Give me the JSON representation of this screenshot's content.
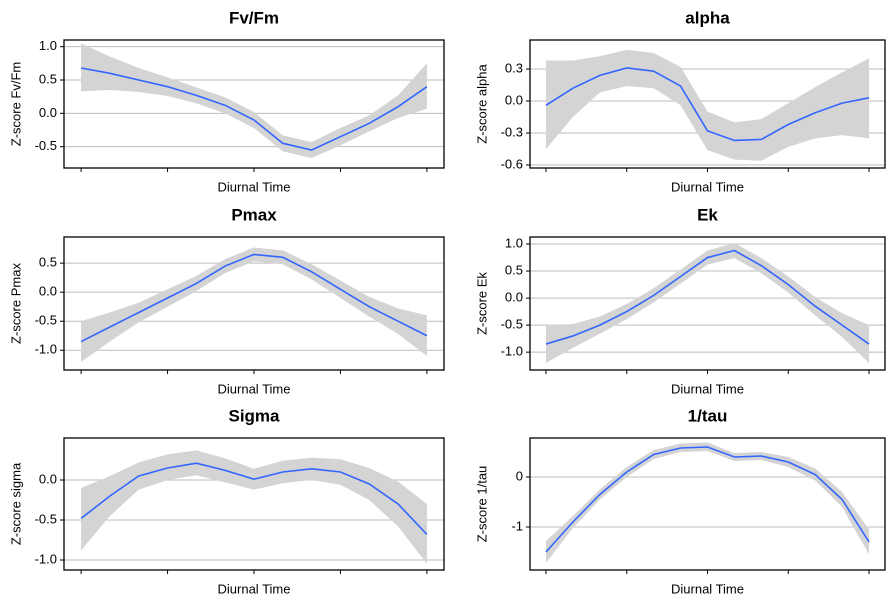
{
  "chart_data": [
    {
      "type": "line",
      "title": "Fv/Fm",
      "xlabel": "Diurnal Time",
      "ylabel": "Z-score Fv/Fm",
      "categories": [
        null,
        null,
        null,
        null,
        null,
        null,
        null,
        null,
        null,
        null,
        null,
        null,
        null
      ],
      "series": [
        {
          "color": "#3366ff",
          "band_color": "#d4d4d4",
          "values": [
            0.68,
            0.6,
            0.5,
            0.4,
            0.27,
            0.12,
            -0.1,
            -0.45,
            -0.55,
            -0.35,
            -0.15,
            0.1,
            0.4
          ],
          "lower": [
            0.33,
            0.35,
            0.32,
            0.26,
            0.15,
            0.0,
            -0.22,
            -0.57,
            -0.67,
            -0.48,
            -0.27,
            -0.07,
            0.07
          ],
          "upper": [
            1.05,
            0.85,
            0.68,
            0.54,
            0.39,
            0.24,
            0.02,
            -0.33,
            -0.43,
            -0.22,
            -0.03,
            0.27,
            0.75
          ]
        }
      ],
      "ylim": [
        -0.82,
        1.1
      ],
      "yticks": [
        {
          "value": -0.5,
          "label": "-0.5"
        },
        {
          "value": 0,
          "label": "0.0"
        },
        0.5,
        {
          "value": 1,
          "label": "1.0"
        }
      ],
      "grid": true
    },
    {
      "type": "line",
      "title": "alpha",
      "xlabel": "Diurnal Time",
      "ylabel": "Z-score alpha",
      "categories": [
        null,
        null,
        null,
        null,
        null,
        null,
        null,
        null,
        null,
        null,
        null,
        null,
        null
      ],
      "series": [
        {
          "color": "#3366ff",
          "band_color": "#d4d4d4",
          "values": [
            -0.04,
            0.12,
            0.24,
            0.31,
            0.28,
            0.14,
            -0.28,
            -0.37,
            -0.36,
            -0.22,
            -0.11,
            -0.02,
            0.03
          ],
          "lower": [
            -0.45,
            -0.15,
            0.08,
            0.14,
            0.12,
            -0.04,
            -0.46,
            -0.55,
            -0.56,
            -0.43,
            -0.35,
            -0.32,
            -0.35
          ],
          "upper": [
            0.38,
            0.38,
            0.42,
            0.48,
            0.45,
            0.32,
            -0.1,
            -0.2,
            -0.17,
            -0.02,
            0.13,
            0.27,
            0.4
          ]
        }
      ],
      "ylim": [
        -0.628,
        0.572
      ],
      "yticks": [
        -0.6,
        -0.3,
        {
          "value": 0,
          "label": "0.0"
        },
        0.3
      ],
      "grid": true
    },
    {
      "type": "line",
      "title": "Pmax",
      "xlabel": "Diurnal Time",
      "ylabel": "Z-score Pmax",
      "categories": [
        null,
        null,
        null,
        null,
        null,
        null,
        null,
        null,
        null,
        null,
        null,
        null,
        null
      ],
      "series": [
        {
          "color": "#3366ff",
          "band_color": "#d4d4d4",
          "values": [
            -0.85,
            -0.6,
            -0.35,
            -0.1,
            0.15,
            0.45,
            0.65,
            0.6,
            0.35,
            0.05,
            -0.25,
            -0.5,
            -0.75
          ],
          "lower": [
            -1.2,
            -0.85,
            -0.52,
            -0.25,
            0.02,
            0.33,
            0.53,
            0.48,
            0.22,
            -0.1,
            -0.42,
            -0.72,
            -1.1
          ],
          "upper": [
            -0.5,
            -0.35,
            -0.18,
            0.05,
            0.28,
            0.57,
            0.77,
            0.72,
            0.48,
            0.2,
            -0.08,
            -0.28,
            -0.4
          ]
        }
      ],
      "ylim": [
        -1.34,
        0.95
      ],
      "yticks": [
        {
          "value": -1,
          "label": "-1.0"
        },
        -0.5,
        {
          "value": 0,
          "label": "0.0"
        },
        0.5
      ],
      "grid": true
    },
    {
      "type": "line",
      "title": "Ek",
      "xlabel": "Diurnal Time",
      "ylabel": "Z-score Ek",
      "categories": [
        null,
        null,
        null,
        null,
        null,
        null,
        null,
        null,
        null,
        null,
        null,
        null,
        null
      ],
      "series": [
        {
          "color": "#3366ff",
          "band_color": "#d4d4d4",
          "values": [
            -0.85,
            -0.7,
            -0.5,
            -0.25,
            0.05,
            0.4,
            0.75,
            0.88,
            0.6,
            0.25,
            -0.15,
            -0.5,
            -0.85
          ],
          "lower": [
            -1.2,
            -0.92,
            -0.66,
            -0.39,
            -0.08,
            0.27,
            0.62,
            0.74,
            0.46,
            0.1,
            -0.32,
            -0.72,
            -1.2
          ],
          "upper": [
            -0.5,
            -0.48,
            -0.34,
            -0.11,
            0.18,
            0.53,
            0.88,
            1.02,
            0.74,
            0.4,
            0.02,
            -0.28,
            -0.5
          ]
        }
      ],
      "ylim": [
        -1.33,
        1.13
      ],
      "yticks": [
        {
          "value": -1,
          "label": "-1.0"
        },
        -0.5,
        {
          "value": 0,
          "label": "0.0"
        },
        0.5,
        {
          "value": 1,
          "label": "1.0"
        }
      ],
      "grid": true
    },
    {
      "type": "line",
      "title": "Sigma",
      "xlabel": "Diurnal Time",
      "ylabel": "Z-score sigma",
      "categories": [
        null,
        null,
        null,
        null,
        null,
        null,
        null,
        null,
        null,
        null,
        null,
        null,
        null
      ],
      "series": [
        {
          "color": "#3366ff",
          "band_color": "#d4d4d4",
          "values": [
            -0.48,
            -0.2,
            0.05,
            0.15,
            0.21,
            0.12,
            0.01,
            0.1,
            0.14,
            0.1,
            -0.05,
            -0.3,
            -0.68
          ],
          "lower": [
            -0.88,
            -0.45,
            -0.12,
            0.0,
            0.06,
            -0.03,
            -0.12,
            -0.04,
            0.0,
            -0.06,
            -0.25,
            -0.58,
            -1.05
          ],
          "upper": [
            -0.1,
            0.05,
            0.22,
            0.32,
            0.37,
            0.27,
            0.14,
            0.24,
            0.28,
            0.26,
            0.15,
            -0.02,
            -0.3
          ]
        }
      ],
      "ylim": [
        -1.125,
        0.525
      ],
      "yticks": [
        {
          "value": -1,
          "label": "-1.0"
        },
        -0.5,
        {
          "value": 0,
          "label": "0.0"
        }
      ],
      "grid": true
    },
    {
      "type": "line",
      "title": "1/tau",
      "xlabel": "Diurnal Time",
      "ylabel": "Z-score 1/tau",
      "categories": [
        null,
        null,
        null,
        null,
        null,
        null,
        null,
        null,
        null,
        null,
        null,
        null,
        null
      ],
      "series": [
        {
          "color": "#3366ff",
          "band_color": "#d4d4d4",
          "values": [
            -1.5,
            -0.9,
            -0.35,
            0.1,
            0.45,
            0.58,
            0.6,
            0.4,
            0.42,
            0.3,
            0.05,
            -0.45,
            -1.3
          ],
          "lower": [
            -1.72,
            -1.02,
            -0.45,
            0.0,
            0.36,
            0.5,
            0.52,
            0.32,
            0.34,
            0.2,
            -0.07,
            -0.6,
            -1.55
          ],
          "upper": [
            -1.28,
            -0.78,
            -0.25,
            0.2,
            0.54,
            0.67,
            0.69,
            0.48,
            0.5,
            0.4,
            0.17,
            -0.3,
            -1.05
          ]
        }
      ],
      "ylim": [
        -1.86,
        0.78
      ],
      "yticks": [
        -1,
        0
      ],
      "grid": true
    }
  ]
}
